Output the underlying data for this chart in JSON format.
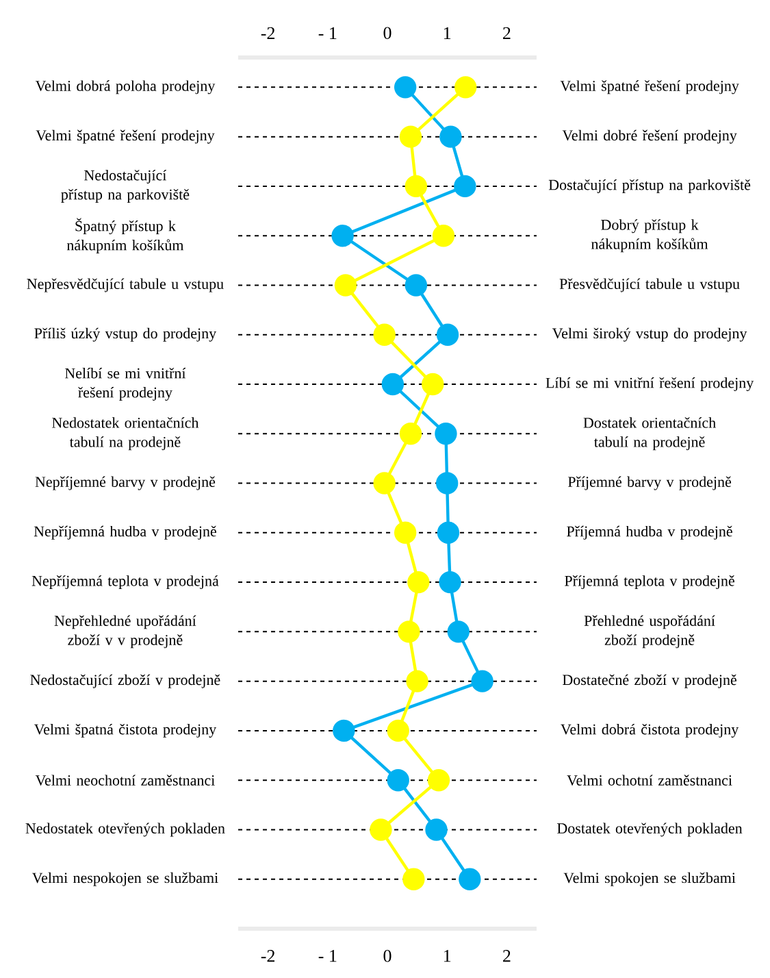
{
  "chart_data": {
    "type": "line",
    "orientation": "horizontal",
    "categories": [
      "Velmi dobrá poloha prodejny",
      "Velmi špatné řešení prodejny",
      "Nedostačující přístup na parkoviště",
      "Špatný přístup k nákupním košíkům",
      "Nepřesvědčující tabule u vstupu",
      "Příliš úzký vstup do prodejny",
      "Nelíbí se mi vnitřní řešení prodejny",
      "Nedostatek orientačních tabulí na prodejně",
      "Nepříjemné barvy v prodejně",
      "Nepříjemná hudba v prodejně",
      "Nepříjemná teplota v prodejná",
      "Nepřehledné upořádání zboží v v prodejně",
      "Nedostačující zboží v prodejně",
      "Velmi špatná čistota prodejny",
      "Velmi neochotní zaměstnanci",
      "Nedostatek otevřených pokladen",
      "Velmi nespokojen se službami"
    ],
    "y2_categories": [
      "Velmi špatné řešení prodejny",
      "Velmi dobré řešení prodejny",
      "Dostačující přístup na parkoviště",
      "Dobrý přístup k nákupním košíkům",
      "Přesvědčující tabule u vstupu",
      "Velmi široký vstup do prodejny",
      "Líbí se mi vnitřní řešení prodejny",
      "Dostatek orientačních tabulí na prodejně",
      "Příjemné barvy v prodejně",
      "Příjemná hudba v prodejně",
      "Příjemná teplota v prodejně",
      "Přehledné uspořádání zboží prodejně",
      "Dostatečné zboží v prodejně",
      "Velmi dobrá čistota prodejny",
      "Velmi ochotní zaměstnanci",
      "Dostatek otevřených pokladen",
      "Velmi spokojen se službami"
    ],
    "series": [
      {
        "color": "#00b0f0",
        "values": [
          0.3,
          1.06,
          1.3,
          -0.75,
          0.48,
          1.01,
          0.09,
          0.98,
          1.0,
          1.02,
          1.05,
          1.19,
          1.59,
          -0.73,
          0.18,
          0.82,
          1.38
        ]
      },
      {
        "color": "#ffff00",
        "values": [
          1.31,
          0.39,
          0.48,
          0.94,
          -0.7,
          -0.05,
          0.76,
          0.39,
          -0.05,
          0.3,
          0.52,
          0.36,
          0.5,
          0.18,
          0.86,
          -0.11,
          0.44
        ]
      }
    ],
    "xlim": [
      -2.5,
      2.5
    ],
    "xticks": [
      -2,
      {
        "value": -1,
        "label": "- 1"
      },
      0,
      1,
      2
    ],
    "x2lim": [
      -2.5,
      2.5
    ],
    "x2ticks": [
      -2,
      {
        "value": -1,
        "label": "- 1"
      },
      0,
      1,
      2
    ],
    "grid": "y",
    "marker": "circle",
    "line_style": "solid"
  }
}
